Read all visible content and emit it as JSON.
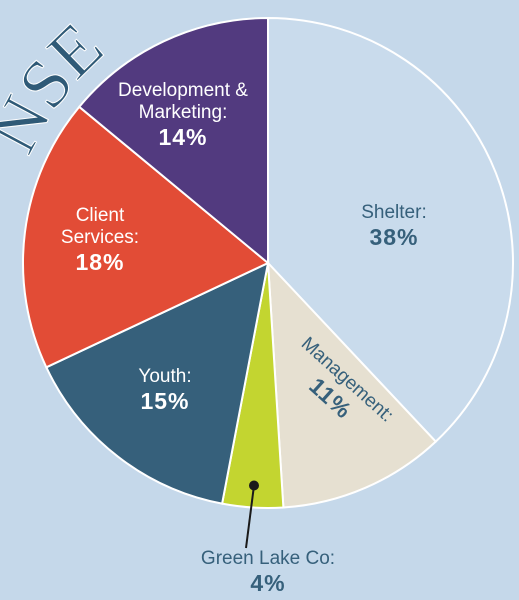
{
  "chart_data": {
    "type": "pie",
    "title": "NSE",
    "categories": [
      "Shelter:",
      "Management:",
      "Green Lake Co:",
      "Youth:",
      "Client Services:",
      "Development & Marketing:"
    ],
    "values": [
      38,
      11,
      4,
      15,
      18,
      14
    ],
    "value_labels": [
      "38%",
      "11%",
      "4%",
      "15%",
      "18%",
      "14%"
    ],
    "colors": [
      "#c9dbec",
      "#e6e0d1",
      "#c3d530",
      "#36607b",
      "#e24c36",
      "#523a7f"
    ]
  }
}
